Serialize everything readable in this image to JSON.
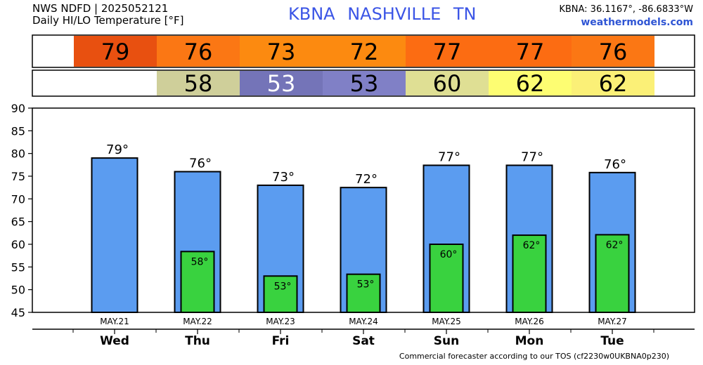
{
  "header": {
    "line1": "NWS NDFD | 2025052121",
    "line2": "Daily HI/LO Temperature [°F]",
    "station": "KBNA  NASHVILLE     TN",
    "coords": "KBNA: 36.1167°, -86.6833°W",
    "site": "weathermodels.com"
  },
  "footer": "Commercial forecaster according to our TOS (cf2230w0UKBNA0p230)",
  "colors": {
    "bar_high": "#5b9cf0",
    "bar_low": "#39d23f",
    "high_strip": [
      "#e85010",
      "#fb7714",
      "#fc8a10",
      "#fc8a10",
      "#fc6c12",
      "#fc6c12",
      "#fb7714"
    ],
    "low_strip": [
      null,
      "#cfcf9a",
      "#7474b8",
      "#8080c6",
      "#dfdf94",
      "#fdfd72",
      "#fbf077"
    ]
  },
  "chart_data": {
    "type": "bar",
    "categories": [
      "Wed",
      "Thu",
      "Fri",
      "Sat",
      "Sun",
      "Mon",
      "Tue"
    ],
    "dates": [
      "MAY.21",
      "MAY.22",
      "MAY.23",
      "MAY.24",
      "MAY.25",
      "MAY.26",
      "MAY.27"
    ],
    "series": [
      {
        "values": [
          79.0,
          76.0,
          73.0,
          72.5,
          77.4,
          77.4,
          75.8
        ],
        "labels": [
          "79°",
          "76°",
          "73°",
          "72°",
          "77°",
          "77°",
          "76°"
        ]
      },
      {
        "values": [
          null,
          58.4,
          53.0,
          53.4,
          60.0,
          62.0,
          62.1
        ],
        "labels": [
          "",
          "58°",
          "53°",
          "53°",
          "60°",
          "62°",
          "62°"
        ]
      }
    ],
    "high_strip": [
      "79",
      "76",
      "73",
      "72",
      "77",
      "77",
      "76"
    ],
    "low_strip": [
      "",
      "58",
      "53",
      "53",
      "60",
      "62",
      "62"
    ],
    "yticks": [
      "90",
      "85",
      "80",
      "75",
      "70",
      "65",
      "60",
      "55",
      "50",
      "45"
    ],
    "ylim": [
      45,
      90
    ],
    "grid": false
  }
}
